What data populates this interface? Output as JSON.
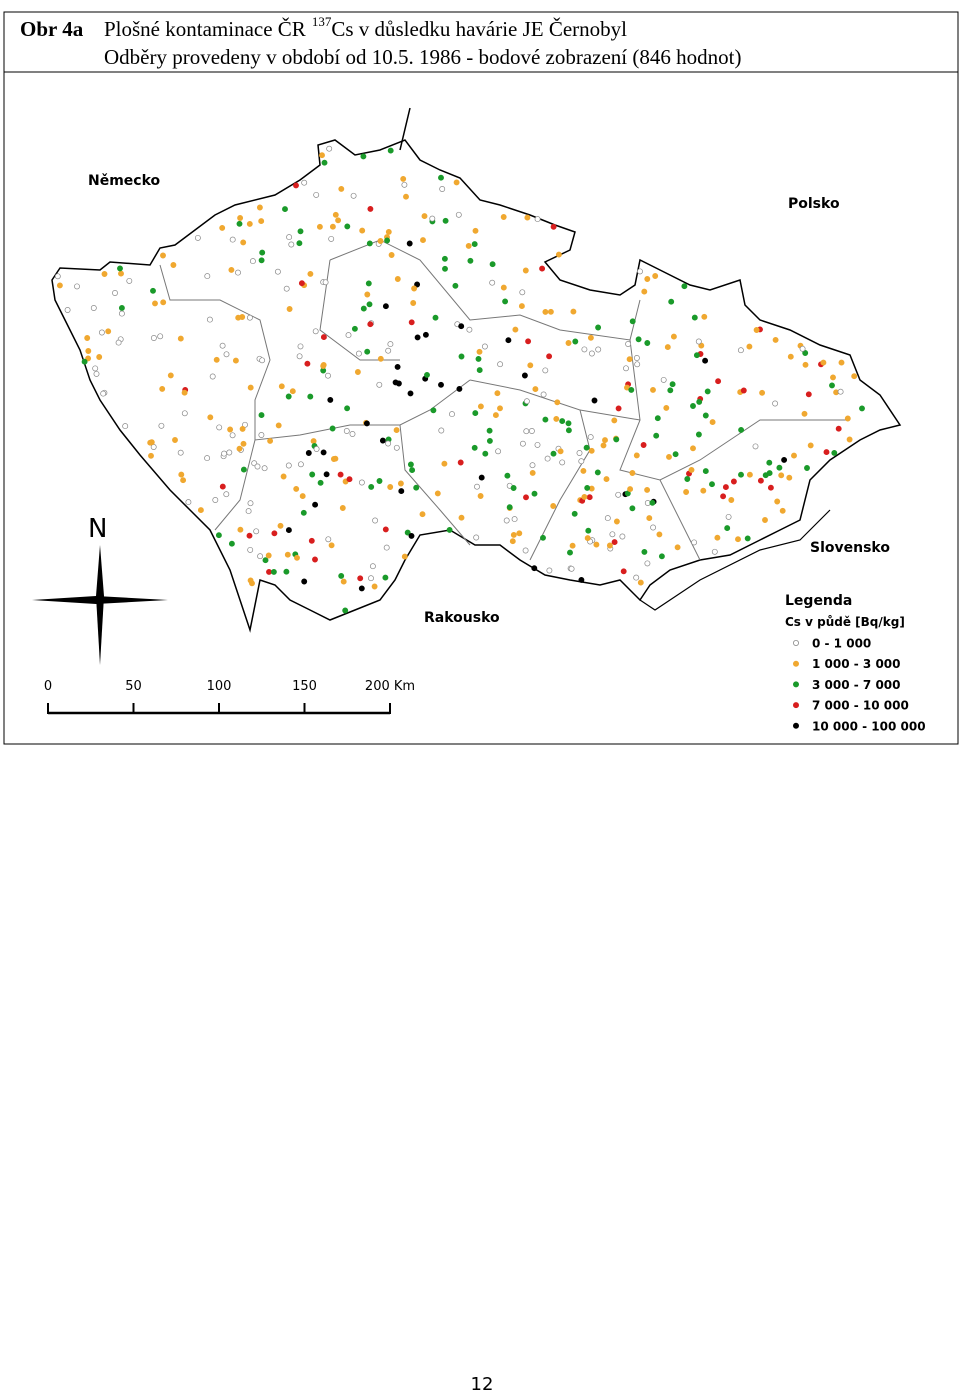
{
  "header": {
    "label": "Obr 4a",
    "title_before": "Plošné kontaminace ČR",
    "isotope_mass": "137",
    "title_after": "Cs v důsledku havárie JE Černobyl",
    "subtitle": "Odběry provedeny v období od 10.5. 1986 - bodové zobrazení (846 hodnot)"
  },
  "map": {
    "countries": [
      "Německo",
      "Polsko",
      "Slovensko",
      "Rakousko"
    ],
    "north": "N",
    "scale": [
      "0",
      "50",
      "100",
      "150",
      "200 Km"
    ],
    "legend": {
      "title": "Legenda",
      "subtitle": "Cs v půdě [Bq/kg]",
      "items": [
        {
          "label": "0 - 1 000",
          "color": "#ffffff"
        },
        {
          "label": "1 000 - 3 000",
          "color": "#f0a830"
        },
        {
          "label": "3 000 - 7 000",
          "color": "#1a9a2a"
        },
        {
          "label": "7 000 - 10 000",
          "color": "#d81e1e"
        },
        {
          "label": "10 000 - 100 000",
          "color": "#000000"
        }
      ]
    }
  },
  "footer": {
    "page": "12"
  }
}
